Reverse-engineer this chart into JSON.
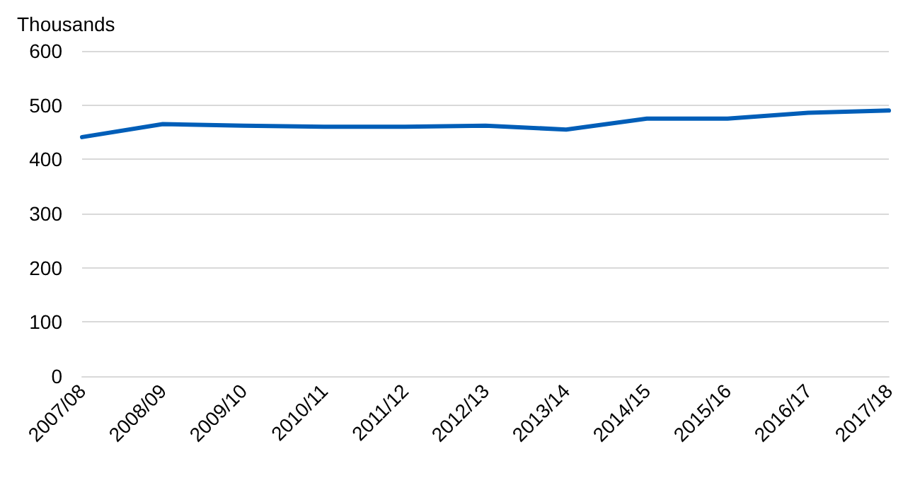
{
  "chart_data": {
    "type": "line",
    "ylabel": "Thousands",
    "categories": [
      "2007/08",
      "2008/09",
      "2009/10",
      "2010/11",
      "2011/12",
      "2012/13",
      "2013/14",
      "2014/15",
      "2015/16",
      "2016/17",
      "2017/18"
    ],
    "series": [
      {
        "color": "#005eb8",
        "values": [
          441,
          465,
          462,
          460,
          460,
          462,
          455,
          475,
          475,
          486,
          490
        ]
      }
    ],
    "ylim": [
      0,
      600
    ],
    "yticks": [
      0,
      100,
      200,
      300,
      400,
      500,
      600
    ],
    "grid": "y",
    "marker": "none",
    "line_style": "solid"
  }
}
